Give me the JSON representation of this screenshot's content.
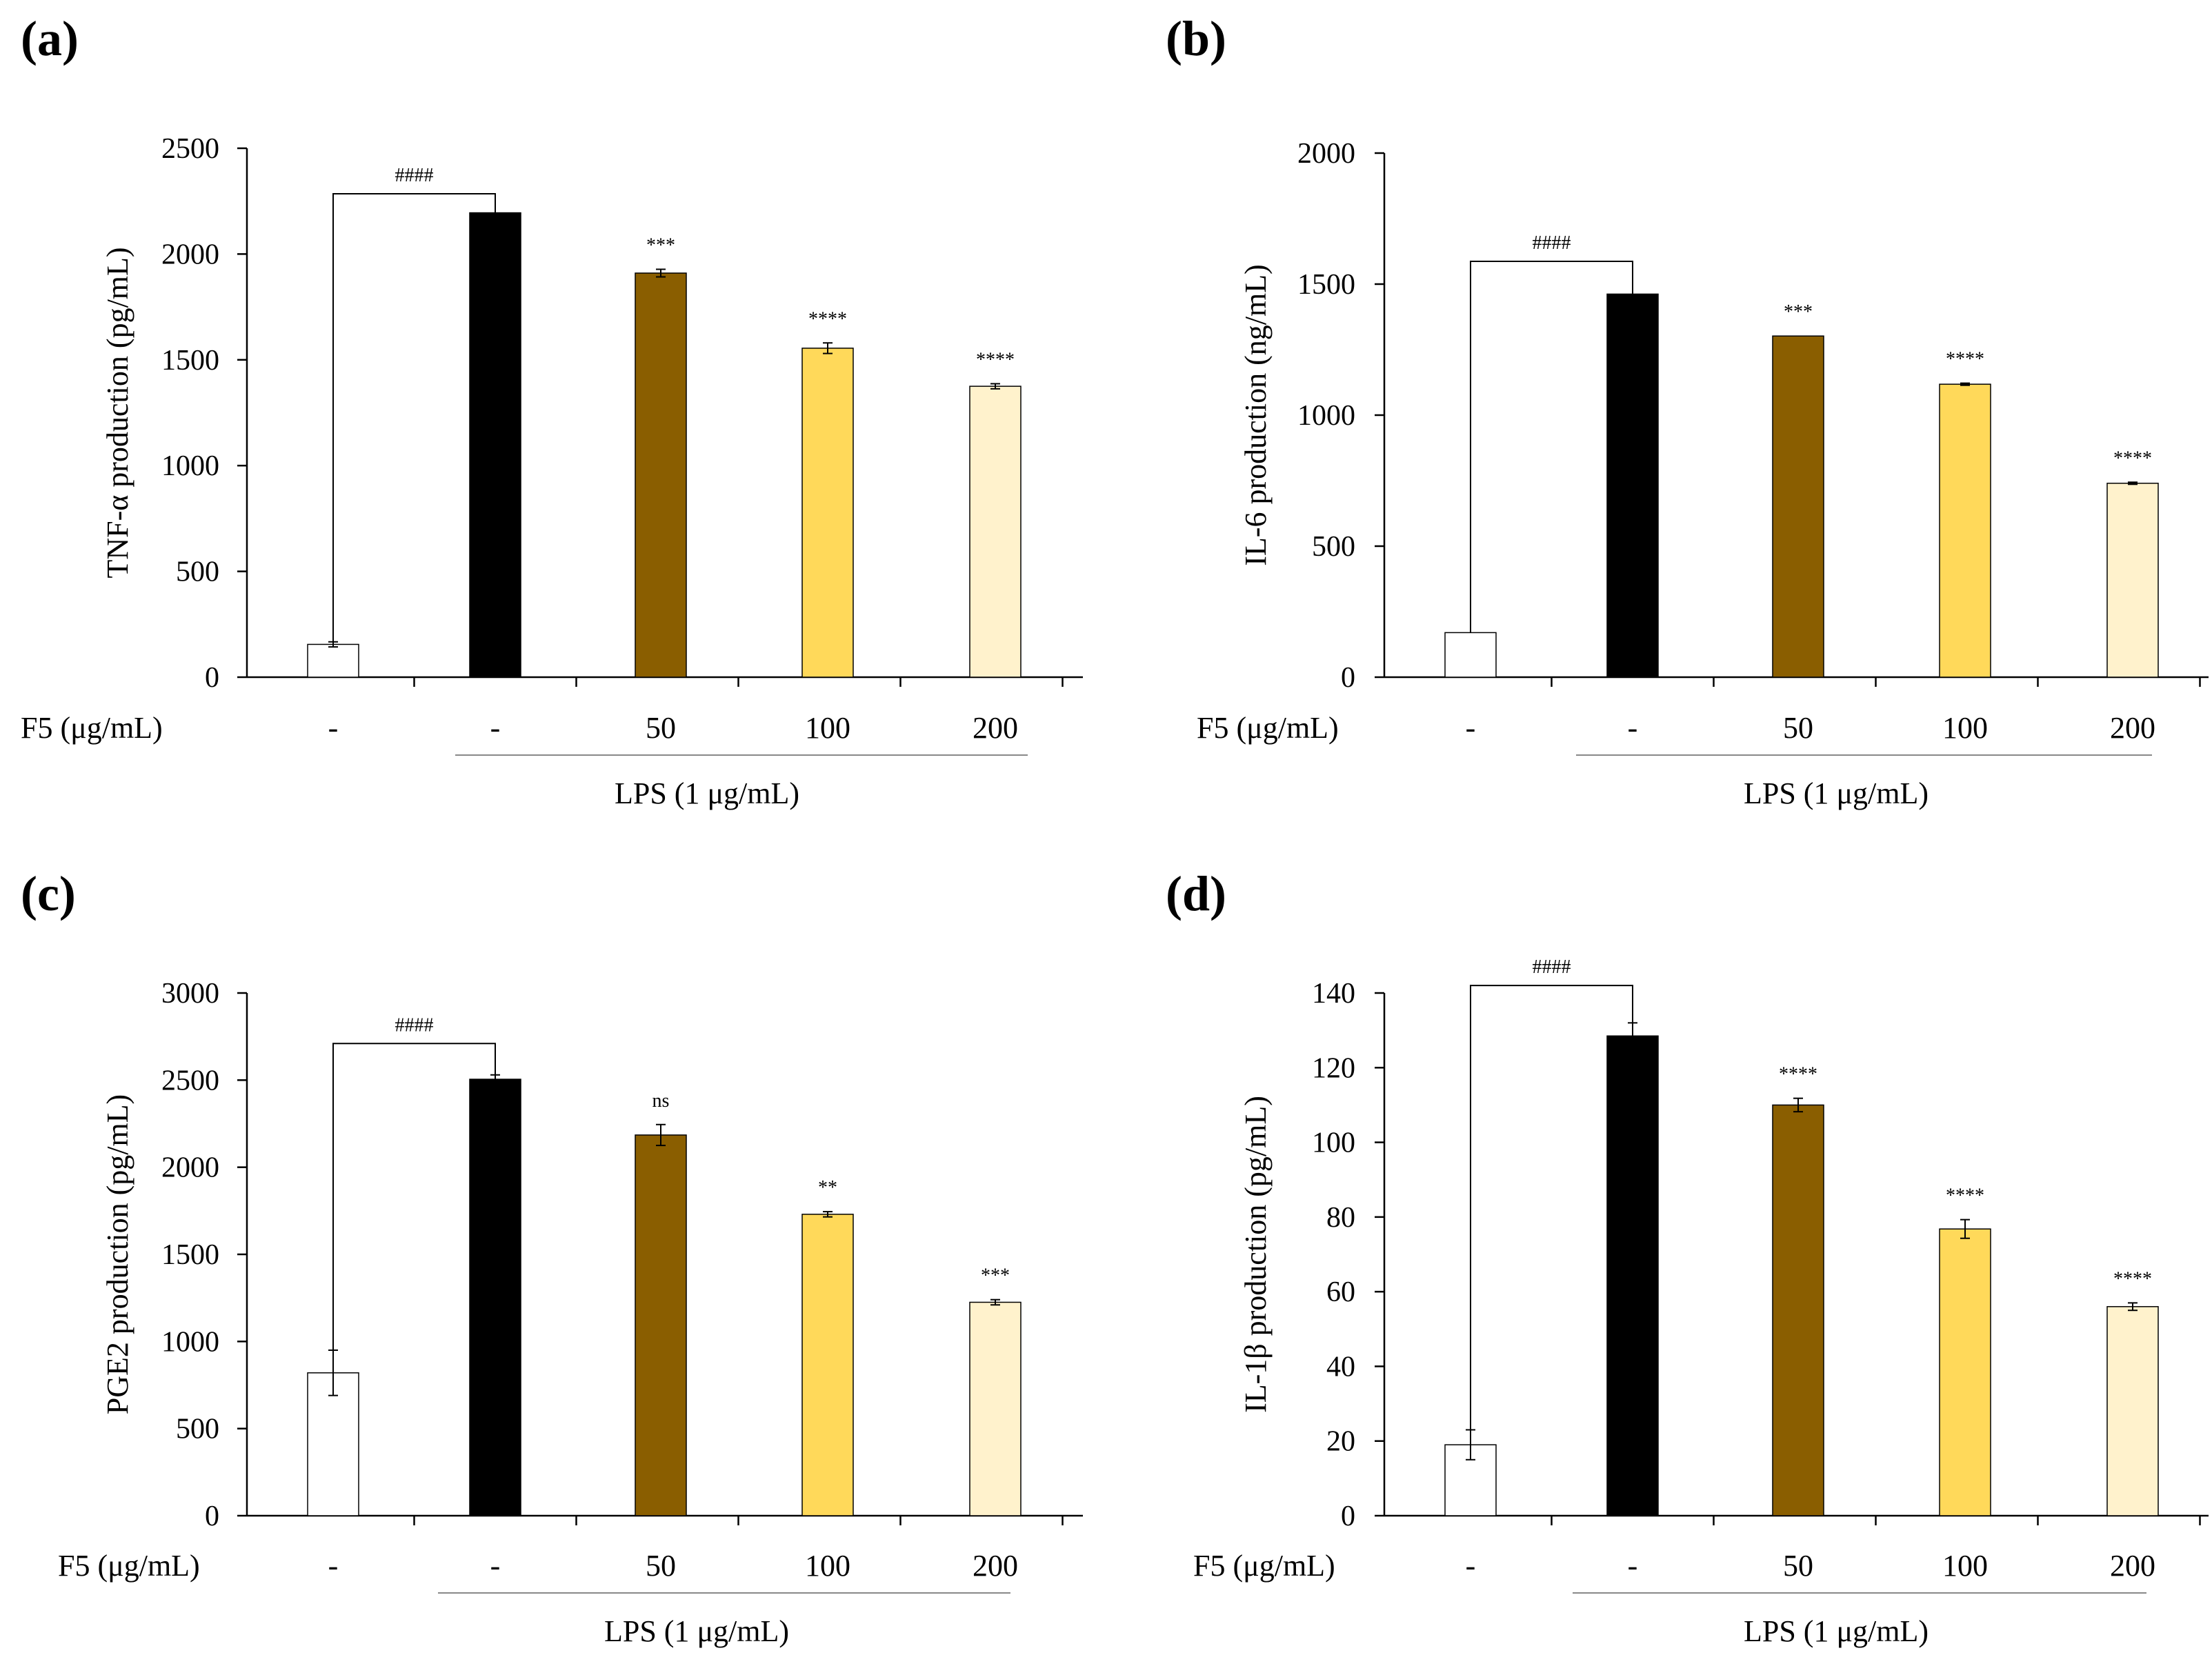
{
  "chart_data": [
    {
      "panel": "(a)",
      "type": "bar",
      "ylabel": "TNF-α production  (pg/mL)",
      "ylim": [
        0,
        2500
      ],
      "yticks": [
        0,
        500,
        1000,
        1500,
        2000,
        2500
      ],
      "row_label": "F5 (μg/mL)",
      "categories": [
        "-",
        "-",
        "50",
        "100",
        "200"
      ],
      "values": [
        155,
        2195,
        1910,
        1555,
        1375
      ],
      "errors": [
        12,
        0,
        18,
        25,
        12
      ],
      "colors": [
        "#ffffff",
        "#000000",
        "#8a5e00",
        "#ffd95a",
        "#fff2cc"
      ],
      "significance": [
        "",
        "",
        "***",
        "****",
        "****"
      ],
      "bracket_label": "####",
      "bracket_top": 2285,
      "group_label": "LPS (1 μg/mL)"
    },
    {
      "panel": "(b)",
      "type": "bar",
      "ylabel": "IL-6 production (ng/mL)",
      "ylim": [
        0,
        2000
      ],
      "yticks": [
        0,
        500,
        1000,
        1500,
        2000
      ],
      "row_label": "F5 (μg/mL)",
      "categories": [
        "-",
        "-",
        "50",
        "100",
        "200"
      ],
      "values": [
        170,
        1462,
        1302,
        1118,
        740
      ],
      "errors": [
        0,
        0,
        0,
        4,
        4
      ],
      "colors": [
        "#ffffff",
        "#000000",
        "#8a5e00",
        "#ffd95a",
        "#fff2cc"
      ],
      "significance": [
        "",
        "",
        "***",
        "****",
        "****"
      ],
      "bracket_label": "####",
      "bracket_top": 1587,
      "group_label": "LPS (1 μg/mL)"
    },
    {
      "panel": "(c)",
      "type": "bar",
      "ylabel": "PGE2 production (pg/mL)",
      "ylim": [
        0,
        3000
      ],
      "yticks": [
        0,
        500,
        1000,
        1500,
        2000,
        2500,
        3000
      ],
      "row_label": "F5 (μg/mL)",
      "categories": [
        "-",
        "-",
        "50",
        "100",
        "200"
      ],
      "values": [
        820,
        2505,
        2185,
        1730,
        1225
      ],
      "errors": [
        130,
        25,
        60,
        15,
        15
      ],
      "colors": [
        "#ffffff",
        "#000000",
        "#8a5e00",
        "#ffd95a",
        "#fff2cc"
      ],
      "significance": [
        "",
        "",
        "ns",
        "**",
        "***"
      ],
      "bracket_label": "####",
      "bracket_top": 2710,
      "group_label": "LPS (1 μg/mL)"
    },
    {
      "panel": "(d)",
      "type": "bar",
      "ylabel": "IL-1β production (pg/mL)",
      "ylim": [
        0,
        140
      ],
      "yticks": [
        0,
        20,
        40,
        60,
        80,
        100,
        120,
        140
      ],
      "row_label": "F5 (μg/mL)",
      "categories": [
        "-",
        "-",
        "50",
        "100",
        "200"
      ],
      "values": [
        19,
        128.5,
        110,
        76.8,
        56
      ],
      "errors": [
        4,
        3.5,
        1.8,
        2.5,
        1
      ],
      "colors": [
        "#ffffff",
        "#000000",
        "#8a5e00",
        "#ffd95a",
        "#fff2cc"
      ],
      "significance": [
        "",
        "",
        "****",
        "****",
        "****"
      ],
      "bracket_label": "####",
      "bracket_top": 142,
      "group_label": "LPS (1 μg/mL)"
    }
  ]
}
